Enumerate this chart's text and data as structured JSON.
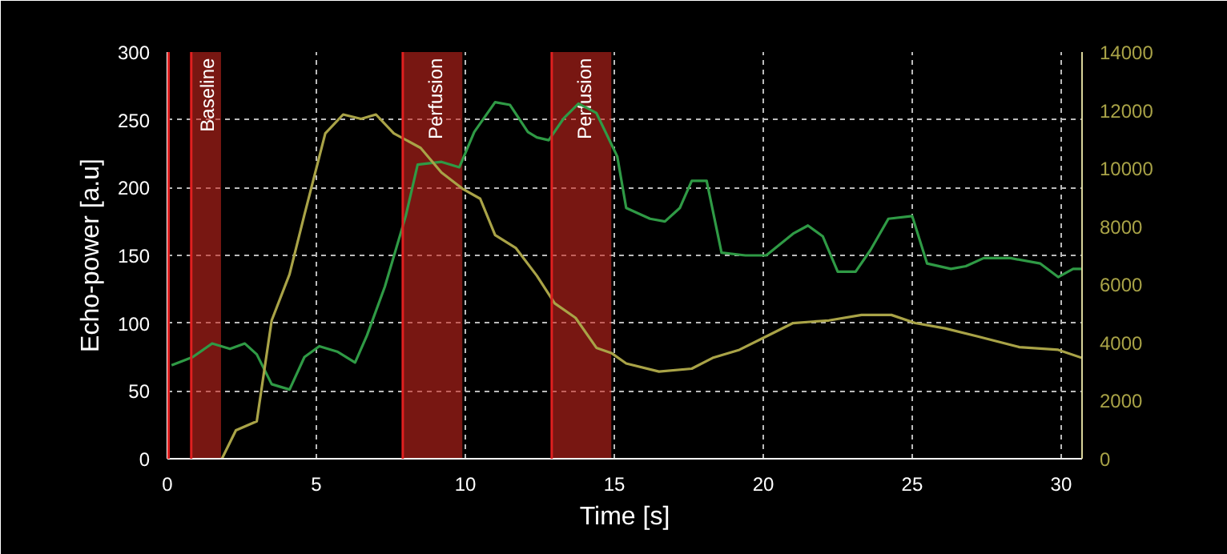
{
  "chart_data": {
    "type": "line",
    "xlabel": "Time [s]",
    "ylabel": "Echo-power [a.u]",
    "xlim": [
      0,
      30.7
    ],
    "xticks": [
      0,
      5,
      10,
      15,
      20,
      25,
      30
    ],
    "ylim": [
      0,
      300
    ],
    "yticks": [
      0,
      50,
      100,
      150,
      200,
      250,
      300
    ],
    "y2lim": [
      0,
      14000
    ],
    "y2ticks": [
      0,
      2000,
      4000,
      6000,
      8000,
      10000,
      12000,
      14000
    ],
    "grid": true,
    "line_style": "solid",
    "marker": "none",
    "series": [
      {
        "color": "#2f9a45",
        "x": [
          0.14,
          0.85,
          1.5,
          2.1,
          2.6,
          3.0,
          3.5,
          4.1,
          4.6,
          5.1,
          5.7,
          6.3,
          6.7,
          7.3,
          8.0,
          8.4,
          9.2,
          9.8,
          10.3,
          11.0,
          11.5,
          12.1,
          12.4,
          12.8,
          13.3,
          13.8,
          14.4,
          15.1,
          15.4,
          16.2,
          16.7,
          17.2,
          17.6,
          18.1,
          18.6,
          19.4,
          20.1,
          21.0,
          21.5,
          22.0,
          22.5,
          23.1,
          23.6,
          24.2,
          25.0,
          25.5,
          26.3,
          26.8,
          27.4,
          28.3,
          29.3,
          29.9,
          30.4,
          30.7
        ],
        "values": [
          69,
          75,
          85,
          81,
          85,
          77,
          55,
          51,
          75,
          83,
          79,
          71,
          91,
          127,
          179,
          217,
          219,
          215,
          241,
          263,
          261,
          241,
          237,
          235,
          251,
          262,
          255,
          223,
          185,
          177,
          175,
          185,
          205,
          205,
          152,
          150,
          150,
          166,
          172,
          164,
          138,
          138,
          154,
          177,
          179,
          144,
          140,
          142,
          148,
          148,
          144,
          134,
          140,
          140
        ]
      },
      {
        "color": "#a9a347",
        "axis": "y2",
        "x": [
          1.83,
          2.3,
          3.0,
          3.5,
          4.1,
          4.6,
          5.3,
          5.9,
          6.5,
          7.0,
          7.6,
          8.5,
          9.2,
          9.9,
          10.5,
          11.0,
          11.7,
          12.4,
          13.0,
          13.7,
          14.4,
          14.9,
          15.4,
          16.5,
          17.6,
          18.3,
          19.2,
          20.1,
          21.0,
          22.2,
          23.3,
          24.3,
          25.1,
          26.1,
          27.2,
          28.6,
          29.9,
          30.7
        ],
        "values": [
          0,
          980,
          1290,
          4760,
          6350,
          8400,
          11200,
          11850,
          11700,
          11850,
          11200,
          10700,
          9850,
          9300,
          8950,
          7700,
          7250,
          6300,
          5350,
          4850,
          3820,
          3640,
          3280,
          3000,
          3100,
          3470,
          3750,
          4210,
          4670,
          4760,
          4950,
          4950,
          4670,
          4490,
          4210,
          3840,
          3750,
          3470
        ]
      }
    ],
    "ref_lines": [
      {
        "axis": "x",
        "value": 0,
        "color": "#e02020"
      },
      {
        "axis": "x",
        "value": 0.8,
        "color": "#e02020"
      },
      {
        "axis": "x",
        "value": 7.9,
        "color": "#e02020"
      },
      {
        "axis": "x",
        "value": 12.9,
        "color": "#e02020"
      }
    ],
    "bands": [
      {
        "axis": "x",
        "from": 0.8,
        "to": 1.8,
        "label": "Baseline",
        "color": "#c8261e"
      },
      {
        "axis": "x",
        "from": 7.9,
        "to": 9.9,
        "label": "Perfusion",
        "color": "#c8261e"
      },
      {
        "axis": "x",
        "from": 12.9,
        "to": 14.9,
        "label": "Perfusion",
        "color": "#c8261e"
      }
    ]
  }
}
